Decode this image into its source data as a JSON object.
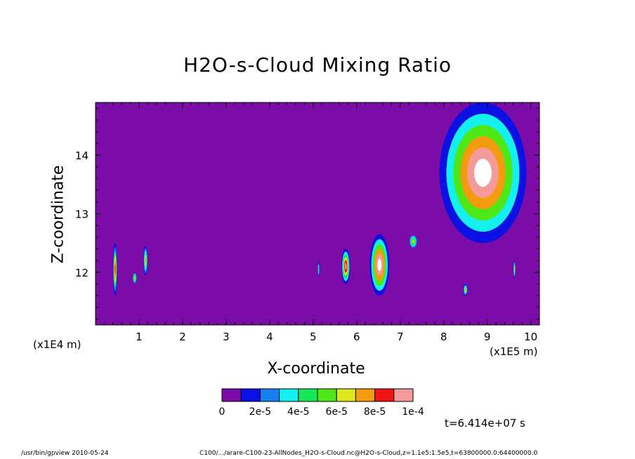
{
  "chart_data": {
    "type": "heatmap",
    "title": "H2O-s-Cloud Mixing Ratio",
    "xlabel": "X-coordinate",
    "ylabel": "Z-coordinate",
    "x_unit": "(x1E5 m)",
    "y_unit": "(x1E4 m)",
    "xlim": [
      0.0,
      10.2
    ],
    "ylim": [
      11.1,
      14.9
    ],
    "x_ticks": [
      1,
      2,
      3,
      4,
      5,
      6,
      7,
      8,
      9,
      10
    ],
    "y_ticks": [
      12,
      13,
      14
    ],
    "background_value": 0,
    "colorbar": {
      "colors": [
        "#7b0ca8",
        "#0b11e3",
        "#1780f0",
        "#14f0f0",
        "#17e85a",
        "#4ee818",
        "#dde81e",
        "#f59b10",
        "#f01414",
        "#f59a9a"
      ],
      "labels": [
        "0",
        "2e-5",
        "4e-5",
        "6e-5",
        "8e-5",
        "1e-4"
      ],
      "range": [
        0,
        0.0001
      ]
    },
    "cloud_features": [
      {
        "x": [
          0.4,
          0.5
        ],
        "z": [
          11.6,
          12.5
        ],
        "peak": 8e-05
      },
      {
        "x": [
          0.85,
          0.95
        ],
        "z": [
          11.8,
          12.0
        ],
        "peak": 6e-05
      },
      {
        "x": [
          1.1,
          1.2
        ],
        "z": [
          11.95,
          12.45
        ],
        "peak": 7e-05
      },
      {
        "x": [
          5.1,
          5.15
        ],
        "z": [
          11.9,
          12.2
        ],
        "peak": 5e-05
      },
      {
        "x": [
          5.65,
          5.85
        ],
        "z": [
          11.8,
          12.4
        ],
        "peak": 9e-05
      },
      {
        "x": [
          6.3,
          6.75
        ],
        "z": [
          11.6,
          12.65
        ],
        "peak": 0.0001
      },
      {
        "x": [
          7.2,
          7.4
        ],
        "z": [
          12.4,
          12.65
        ],
        "peak": 6e-05
      },
      {
        "x": [
          8.45,
          8.55
        ],
        "z": [
          11.6,
          11.8
        ],
        "peak": 7e-05
      },
      {
        "x": [
          7.9,
          9.9
        ],
        "z": [
          12.5,
          14.9
        ],
        "peak": 0.0001
      },
      {
        "x": [
          9.6,
          9.65
        ],
        "z": [
          11.9,
          12.2
        ],
        "peak": 7e-05
      }
    ]
  },
  "annotations": {
    "time": "t=6.414e+07 s"
  },
  "footer": {
    "left": "/usr/bin/gpview  2010-05-24",
    "right": "C100/.../arare-C100-23-AllNodes_H2O-s-Cloud.nc@H2O-s-Cloud,z=1.1e5:1.5e5,t=63800000.0:64400000.0"
  }
}
